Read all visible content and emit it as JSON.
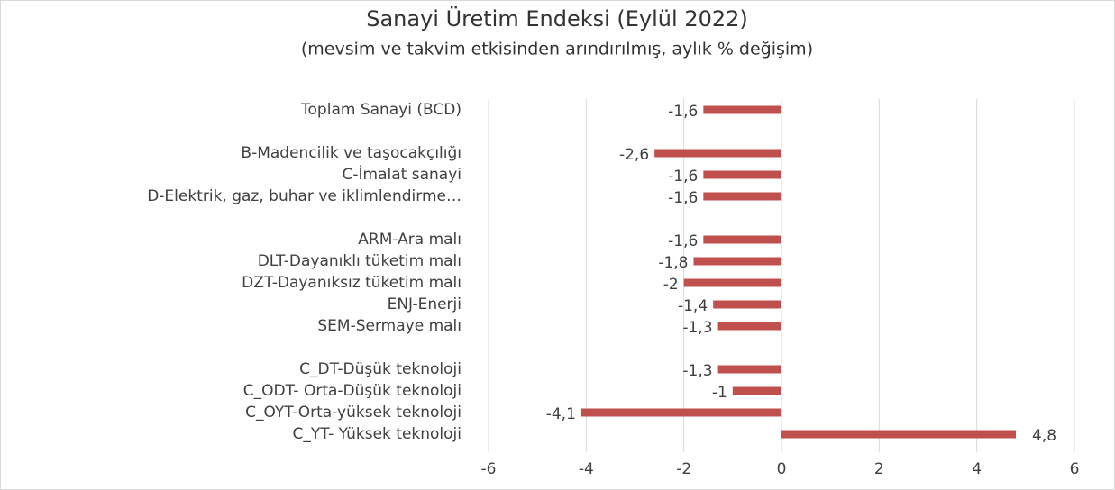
{
  "chart_data": {
    "type": "hbar",
    "title": "Sanayi Üretim Endeksi (Eylül 2022)",
    "subtitle": "(mevsim ve takvim etkisinden arındırılmış, aylık % değişim)",
    "categories": [
      "Toplam Sanayi (BCD)",
      null,
      "B-Madencilik ve taşocakçılığı",
      "C-İmalat sanayi",
      "D-Elektrik, gaz, buhar ve iklimlendirme…",
      null,
      "ARM-Ara malı",
      "DLT-Dayanıklı tüketim malı",
      "DZT-Dayanıksız tüketim malı",
      "ENJ-Enerji",
      "SEM-Sermaye malı",
      null,
      "C_DT-Düşük teknoloji",
      "C_ODT- Orta-Düşük teknoloji",
      "C_OYT-Orta-yüksek teknoloji",
      "C_YT- Yüksek teknoloji"
    ],
    "values": [
      -1.6,
      null,
      -2.6,
      -1.6,
      -1.6,
      null,
      -1.6,
      -1.8,
      -2,
      -1.4,
      -1.3,
      null,
      -1.3,
      -1,
      -4.1,
      4.8
    ],
    "value_labels": [
      "-1,6",
      null,
      "-2,6",
      "-1,6",
      "-1,6",
      null,
      "-1,6",
      "-1,8",
      "-2",
      "-1,4",
      "-1,3",
      null,
      "-1,3",
      "-1",
      "-4,1",
      "4,8"
    ],
    "color": "#c0504d",
    "xlim": [
      -6,
      6
    ],
    "xticks": [
      -6,
      -4,
      -2,
      0,
      2,
      4,
      6
    ],
    "grid": true
  }
}
